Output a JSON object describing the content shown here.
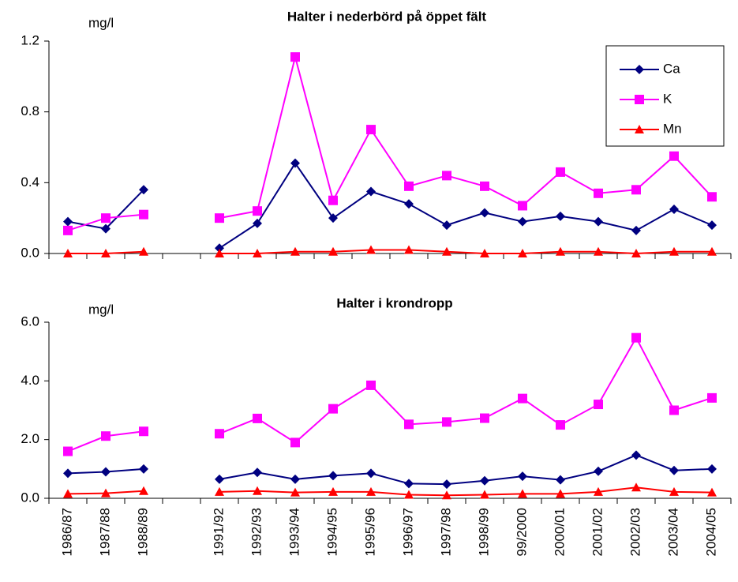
{
  "chart_data": [
    {
      "type": "line",
      "title": "Halter i nederbörd på  öppet fält",
      "ylabel": "mg/l",
      "ylim": [
        0,
        1.2
      ],
      "yticks": [
        {
          "value": 0,
          "label": "0.0"
        },
        0.4,
        0.8,
        1.2
      ],
      "legend": "upper right",
      "series": [
        {
          "name": "Ca",
          "color": "#000080",
          "marker": "diamond",
          "values": [
            0.18,
            0.14,
            0.36,
            null,
            0.03,
            0.17,
            0.51,
            0.2,
            0.35,
            0.28,
            0.16,
            0.23,
            0.18,
            0.21,
            0.18,
            0.13,
            0.25,
            0.16
          ]
        },
        {
          "name": "K",
          "color": "#ff00ff",
          "marker": "square",
          "values": [
            0.13,
            0.2,
            0.22,
            null,
            0.2,
            0.24,
            1.11,
            0.3,
            0.7,
            0.38,
            0.44,
            0.38,
            0.27,
            0.46,
            0.34,
            0.36,
            0.55,
            0.32
          ]
        },
        {
          "name": "Mn",
          "color": "#ff0000",
          "marker": "triangle",
          "values": [
            0,
            0,
            0.01,
            null,
            0,
            0,
            0.01,
            0.01,
            0.02,
            0.02,
            0.01,
            0,
            0,
            0.01,
            0.01,
            0,
            0.01,
            0.01
          ]
        }
      ]
    },
    {
      "type": "line",
      "title": "Halter i  krondropp",
      "ylabel": "mg/l",
      "ylim": [
        0,
        6
      ],
      "yticks": [
        {
          "value": 0,
          "label": "0.0"
        },
        {
          "value": 2,
          "label": "2.0"
        },
        {
          "value": 4,
          "label": "4.0"
        },
        {
          "value": 6,
          "label": "6.0"
        }
      ],
      "categories": [
        "1986/87",
        "1987/88",
        "1988/89",
        null,
        "1991/92",
        "1992/93",
        "1993/94",
        "1994/95",
        "1995/96",
        "1996/97",
        "1997/98",
        "1998/99",
        "99/2000",
        "2000/01",
        "2001/02",
        "2002/03",
        "2003/04",
        "2004/05"
      ],
      "series": [
        {
          "name": "Ca",
          "color": "#000080",
          "marker": "diamond",
          "values": [
            0.85,
            0.9,
            1.0,
            null,
            0.65,
            0.88,
            0.65,
            0.77,
            0.85,
            0.5,
            0.48,
            0.6,
            0.75,
            0.63,
            0.92,
            1.47,
            0.95,
            1.0
          ]
        },
        {
          "name": "K",
          "color": "#ff00ff",
          "marker": "square",
          "values": [
            1.6,
            2.12,
            2.28,
            null,
            2.2,
            2.72,
            1.9,
            3.05,
            3.85,
            2.52,
            2.6,
            2.73,
            3.4,
            2.5,
            3.2,
            5.47,
            3.0,
            3.42
          ]
        },
        {
          "name": "Mn",
          "color": "#ff0000",
          "marker": "triangle",
          "values": [
            0.15,
            0.17,
            0.25,
            null,
            0.22,
            0.25,
            0.2,
            0.22,
            0.22,
            0.12,
            0.1,
            0.12,
            0.15,
            0.15,
            0.22,
            0.37,
            0.22,
            0.2
          ]
        }
      ]
    }
  ]
}
